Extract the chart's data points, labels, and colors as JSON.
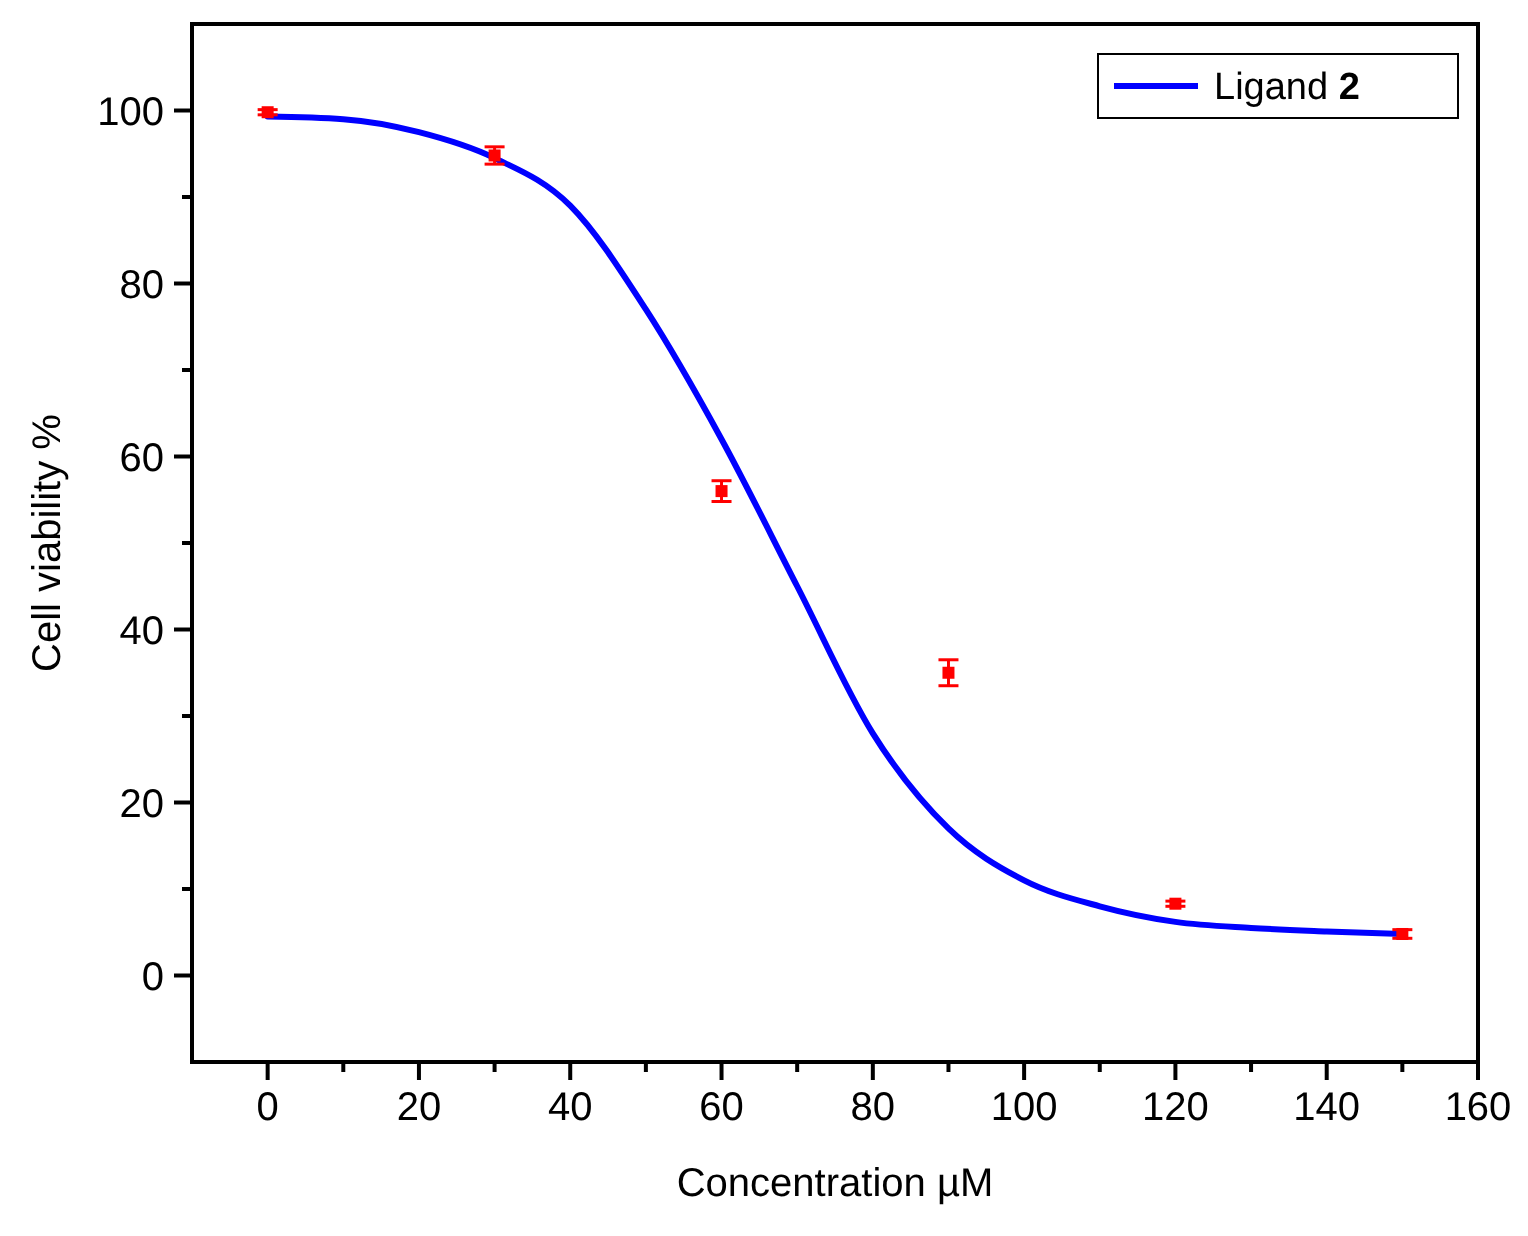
{
  "chart_data": {
    "type": "line",
    "xlabel": "Concentration µM",
    "ylabel": "Cell viability %",
    "xlim": [
      -10,
      160
    ],
    "ylim": [
      -10,
      110
    ],
    "xticks": [
      0,
      {
        "value": 10,
        "label": null
      },
      20,
      {
        "value": 30,
        "label": null
      },
      40,
      {
        "value": 50,
        "label": null
      },
      60,
      {
        "value": 70,
        "label": null
      },
      80,
      {
        "value": 90,
        "label": null
      },
      100,
      {
        "value": 110,
        "label": null
      },
      120,
      {
        "value": 130,
        "label": null
      },
      140,
      {
        "value": 150,
        "label": null
      },
      160
    ],
    "yticks": [
      0,
      {
        "value": 10,
        "label": null
      },
      20,
      {
        "value": 30,
        "label": null
      },
      40,
      {
        "value": 50,
        "label": null
      },
      60,
      {
        "value": 70,
        "label": null
      },
      80,
      {
        "value": 90,
        "label": null
      },
      100
    ],
    "grid": false,
    "legend": "top right",
    "series": [
      {
        "name": "Ligand 2",
        "color": "#0000ff",
        "marker": "none",
        "line_style": "solid",
        "x": [
          0,
          10,
          20,
          30,
          40,
          50,
          60,
          70,
          80,
          90,
          100,
          110,
          120,
          130,
          140,
          150
        ],
        "values": [
          99.3,
          99,
          97.5,
          94.5,
          89,
          77,
          62,
          45,
          28,
          17,
          11,
          8,
          6.2,
          5.5,
          5.1,
          4.8
        ]
      },
      {
        "type": "scatter",
        "color": "#ff0000",
        "marker": "square",
        "x": [
          0,
          30,
          60,
          90,
          120,
          150
        ],
        "values": [
          99.8,
          94.8,
          56,
          35,
          8.3,
          4.8
        ],
        "errors": [
          0.3,
          1,
          1.2,
          1.5,
          0.3,
          0.5
        ]
      }
    ]
  }
}
